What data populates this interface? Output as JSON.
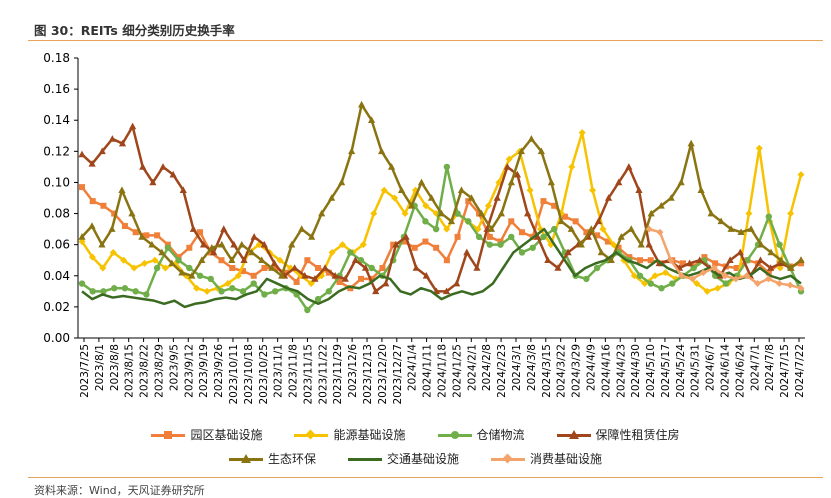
{
  "figure": {
    "title": "图 30：REITs 细分类别历史换手率",
    "source": "资料来源：Wind，天风证券研究所"
  },
  "chart_data": {
    "type": "line",
    "ylim": [
      0,
      0.18
    ],
    "yticks": [
      "0.18",
      "0.16",
      "0.14",
      "0.12",
      "0.10",
      "0.08",
      "0.06",
      "0.04",
      "0.02",
      "0.00"
    ],
    "grid": false,
    "legend_position": "bottom",
    "x_ticks": [
      "2023/7/25",
      "2023/8/1",
      "2023/8/8",
      "2023/8/15",
      "2023/8/22",
      "2023/8/29",
      "2023/9/5",
      "2023/9/12",
      "2023/9/19",
      "2023/9/26",
      "2023/10/11",
      "2023/10/18",
      "2023/10/25",
      "2023/11/1",
      "2023/11/8",
      "2023/11/15",
      "2023/11/22",
      "2023/11/29",
      "2023/12/6",
      "2023/12/13",
      "2023/12/20",
      "2023/12/27",
      "2024/1/4",
      "2024/1/11",
      "2024/1/18",
      "2024/1/25",
      "2024/2/1",
      "2024/2/8",
      "2024/2/23",
      "2024/3/1",
      "2024/3/8",
      "2024/3/15",
      "2024/3/22",
      "2024/3/29",
      "2024/4/9",
      "2024/4/16",
      "2024/4/23",
      "2024/4/30",
      "2024/5/10",
      "2024/5/17",
      "2024/5/24",
      "2024/5/31",
      "2024/6/7",
      "2024/6/14",
      "2024/6/24",
      "2024/7/1",
      "2024/7/8",
      "2024/7/15",
      "2024/7/22"
    ],
    "series": [
      {
        "name": "园区基础设施",
        "color": "#f07f3a",
        "marker": "square",
        "start": 0,
        "values": [
          0.097,
          0.088,
          0.085,
          0.08,
          0.072,
          0.068,
          0.066,
          0.066,
          0.06,
          0.052,
          0.058,
          0.068,
          0.055,
          0.05,
          0.045,
          0.043,
          0.04,
          0.045,
          0.045,
          0.042,
          0.036,
          0.05,
          0.045,
          0.042,
          0.036,
          0.032,
          0.038,
          0.038,
          0.045,
          0.06,
          0.062,
          0.058,
          0.062,
          0.058,
          0.05,
          0.065,
          0.088,
          0.08,
          0.065,
          0.062,
          0.075,
          0.068,
          0.065,
          0.088,
          0.085,
          0.078,
          0.075,
          0.068,
          0.066,
          0.062,
          0.058,
          0.052,
          0.05,
          0.05,
          0.048,
          0.05,
          0.048,
          0.046,
          0.052,
          0.048,
          0.046,
          0.045,
          0.05,
          0.048,
          0.042,
          0.048,
          0.046,
          0.048
        ]
      },
      {
        "name": "能源基础设施",
        "color": "#f7c200",
        "marker": "diamond",
        "start": 0,
        "values": [
          0.062,
          0.052,
          0.045,
          0.055,
          0.05,
          0.045,
          0.048,
          0.05,
          0.045,
          0.048,
          0.04,
          0.032,
          0.03,
          0.032,
          0.035,
          0.04,
          0.055,
          0.06,
          0.055,
          0.05,
          0.045,
          0.04,
          0.035,
          0.04,
          0.055,
          0.06,
          0.055,
          0.06,
          0.08,
          0.095,
          0.09,
          0.08,
          0.095,
          0.085,
          0.08,
          0.07,
          0.08,
          0.075,
          0.07,
          0.085,
          0.1,
          0.115,
          0.12,
          0.095,
          0.07,
          0.06,
          0.08,
          0.11,
          0.132,
          0.095,
          0.07,
          0.06,
          0.05,
          0.04,
          0.035,
          0.04,
          0.042,
          0.038,
          0.04,
          0.035,
          0.03,
          0.032,
          0.035,
          0.04,
          0.08,
          0.122,
          0.075,
          0.045,
          0.08,
          0.105
        ]
      },
      {
        "name": "仓储物流",
        "color": "#6fae48",
        "marker": "circle",
        "start": 0,
        "values": [
          0.035,
          0.03,
          0.03,
          0.032,
          0.032,
          0.03,
          0.028,
          0.045,
          0.058,
          0.05,
          0.045,
          0.04,
          0.038,
          0.03,
          0.032,
          0.03,
          0.035,
          0.028,
          0.03,
          0.032,
          0.028,
          0.018,
          0.025,
          0.03,
          0.04,
          0.055,
          0.05,
          0.045,
          0.04,
          0.05,
          0.065,
          0.085,
          0.075,
          0.07,
          0.11,
          0.08,
          0.075,
          0.065,
          0.06,
          0.06,
          0.065,
          0.055,
          0.058,
          0.065,
          0.07,
          0.055,
          0.04,
          0.038,
          0.045,
          0.05,
          0.055,
          0.05,
          0.04,
          0.035,
          0.032,
          0.035,
          0.04,
          0.045,
          0.05,
          0.04,
          0.035,
          0.04,
          0.05,
          0.06,
          0.078,
          0.06,
          0.045,
          0.03
        ]
      },
      {
        "name": "保障性租赁住房",
        "color": "#a0461b",
        "marker": "triangle",
        "start": 0,
        "values": [
          0.118,
          0.112,
          0.12,
          0.128,
          0.125,
          0.136,
          0.11,
          0.1,
          0.11,
          0.105,
          0.095,
          0.07,
          0.06,
          0.055,
          0.07,
          0.06,
          0.05,
          0.065,
          0.06,
          0.048,
          0.04,
          0.045,
          0.04,
          0.038,
          0.045,
          0.04,
          0.038,
          0.05,
          0.045,
          0.03,
          0.035,
          0.06,
          0.065,
          0.045,
          0.04,
          0.03,
          0.03,
          0.035,
          0.055,
          0.045,
          0.07,
          0.09,
          0.11,
          0.105,
          0.08,
          0.065,
          0.05,
          0.045,
          0.055,
          0.06,
          0.065,
          0.075,
          0.09,
          0.1,
          0.11,
          0.095,
          0.06,
          0.048,
          0.05,
          0.045,
          0.048,
          0.05,
          0.045,
          0.04,
          0.05,
          0.055,
          0.04,
          0.05,
          0.045,
          0.048,
          0.045,
          0.05
        ]
      },
      {
        "name": "生态环保",
        "color": "#8a7412",
        "marker": "triangle",
        "start": 0,
        "values": [
          0.065,
          0.072,
          0.06,
          0.07,
          0.095,
          0.08,
          0.065,
          0.06,
          0.055,
          0.048,
          0.042,
          0.04,
          0.05,
          0.058,
          0.06,
          0.05,
          0.06,
          0.055,
          0.05,
          0.045,
          0.04,
          0.06,
          0.07,
          0.065,
          0.08,
          0.09,
          0.1,
          0.12,
          0.15,
          0.14,
          0.12,
          0.11,
          0.095,
          0.085,
          0.1,
          0.09,
          0.08,
          0.075,
          0.095,
          0.09,
          0.08,
          0.07,
          0.08,
          0.1,
          0.12,
          0.128,
          0.12,
          0.1,
          0.075,
          0.07,
          0.06,
          0.07,
          0.055,
          0.05,
          0.065,
          0.07,
          0.06,
          0.08,
          0.085,
          0.09,
          0.1,
          0.125,
          0.095,
          0.08,
          0.075,
          0.07,
          0.068,
          0.07,
          0.06,
          0.055,
          0.05,
          0.045,
          0.05
        ]
      },
      {
        "name": "交通基础设施",
        "color": "#3a6b20",
        "marker": "none",
        "start": 0,
        "values": [
          0.03,
          0.025,
          0.028,
          0.026,
          0.027,
          0.026,
          0.025,
          0.024,
          0.022,
          0.024,
          0.02,
          0.022,
          0.023,
          0.025,
          0.026,
          0.025,
          0.028,
          0.03,
          0.038,
          0.035,
          0.032,
          0.03,
          0.025,
          0.022,
          0.025,
          0.03,
          0.033,
          0.032,
          0.035,
          0.04,
          0.038,
          0.03,
          0.028,
          0.032,
          0.03,
          0.025,
          0.028,
          0.03,
          0.028,
          0.03,
          0.035,
          0.045,
          0.055,
          0.06,
          0.065,
          0.07,
          0.06,
          0.05,
          0.04,
          0.045,
          0.048,
          0.05,
          0.055,
          0.05,
          0.048,
          0.045,
          0.05,
          0.045,
          0.042,
          0.04,
          0.042,
          0.045,
          0.04,
          0.042,
          0.038,
          0.04,
          0.045,
          0.04,
          0.038,
          0.04,
          0.035
        ]
      },
      {
        "name": "消费基础设施",
        "color": "#f4a36a",
        "marker": "diamond",
        "start": 56,
        "values": [
          0.07,
          0.068,
          0.05,
          0.04,
          0.038,
          0.042,
          0.045,
          0.04,
          0.038,
          0.04,
          0.035,
          0.038,
          0.035,
          0.034,
          0.032
        ]
      }
    ]
  }
}
